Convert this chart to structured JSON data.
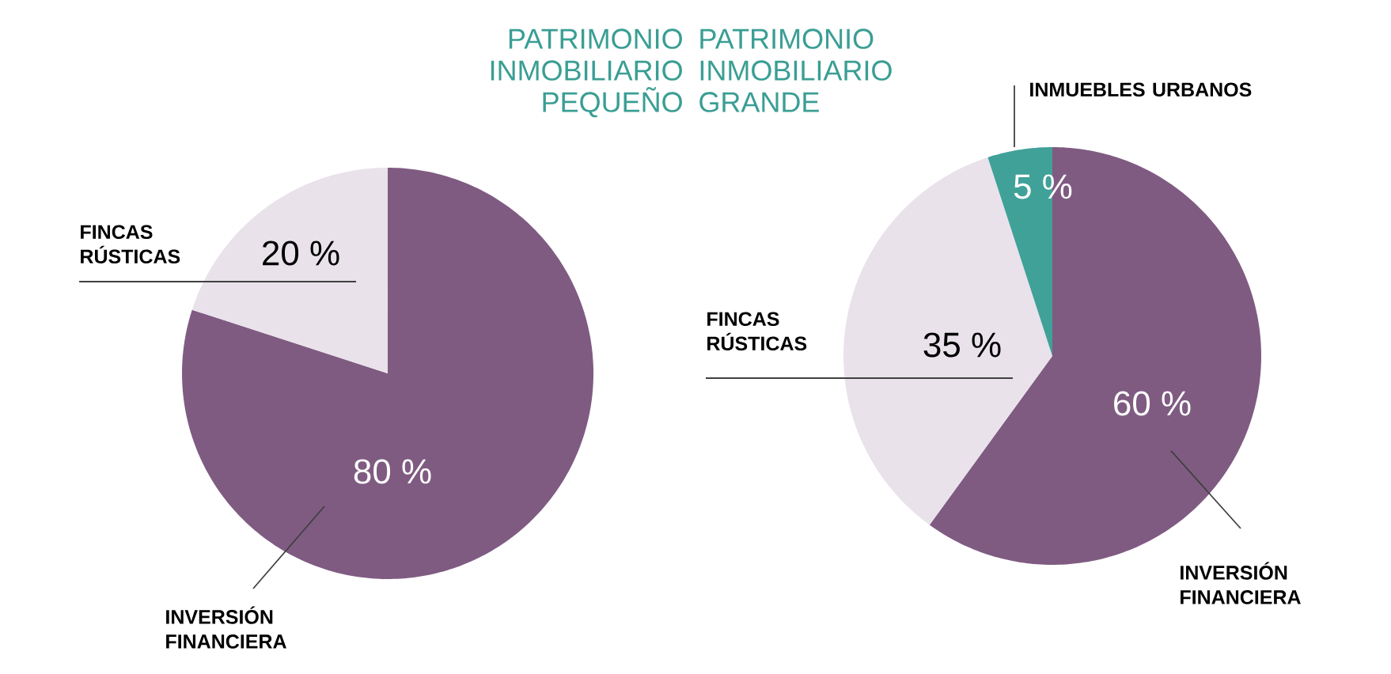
{
  "chart_data": [
    {
      "type": "pie",
      "title": "PATRIMONIO INMOBILIARIO PEQUEÑO",
      "categories": [
        "INVERSIÓN FINANCIERA",
        "FINCAS RÚSTICAS"
      ],
      "values": [
        80,
        20
      ],
      "value_labels": [
        "80 %",
        "20 %"
      ],
      "colors": [
        "#7f5b82",
        "#e9e2ea"
      ]
    },
    {
      "type": "pie",
      "title": "PATRIMONIO INMOBILIARIO GRANDE",
      "categories": [
        "INVERSIÓN FINANCIERA",
        "FINCAS RÚSTICAS",
        "INMUEBLES URBANOS"
      ],
      "values": [
        60,
        35,
        5
      ],
      "value_labels": [
        "60 %",
        "35 %",
        "5 %"
      ],
      "colors": [
        "#7f5b82",
        "#e9e2ea",
        "#40a199"
      ]
    }
  ]
}
